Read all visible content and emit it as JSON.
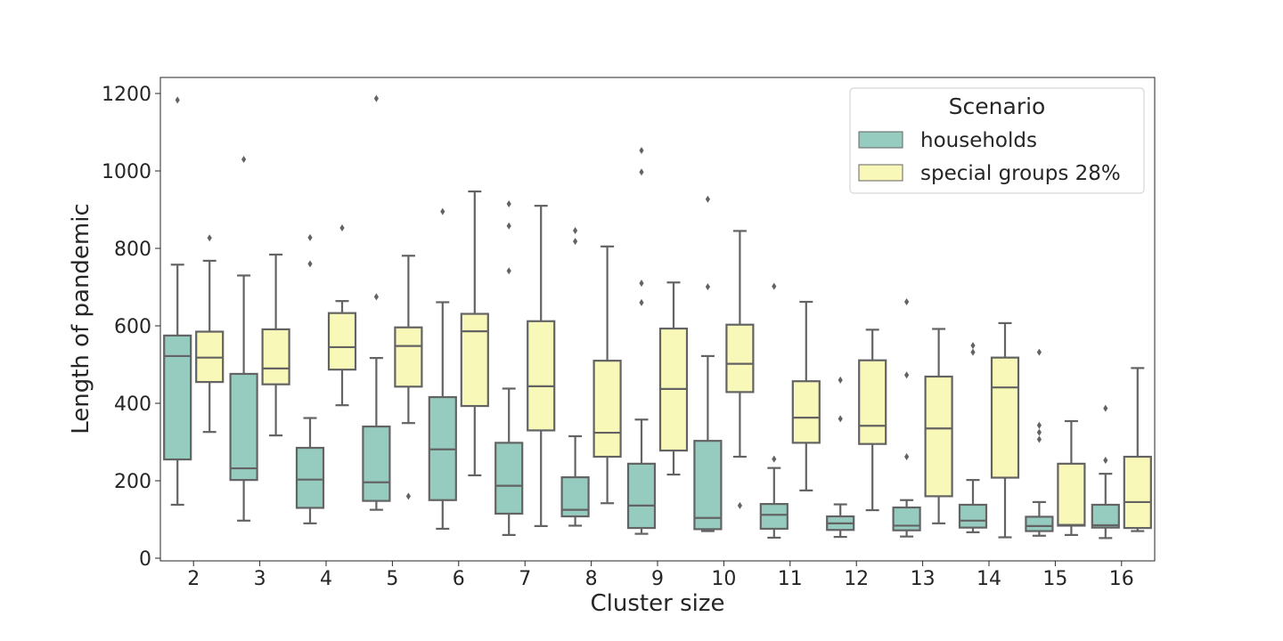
{
  "chart_data": {
    "type": "box",
    "xlabel": "Cluster size",
    "ylabel": "Length of pandemic",
    "ylim": [
      0,
      1250
    ],
    "yticks": [
      0,
      200,
      400,
      600,
      800,
      1000,
      1200
    ],
    "categories": [
      "2",
      "3",
      "4",
      "5",
      "6",
      "7",
      "8",
      "9",
      "10",
      "11",
      "12",
      "13",
      "14",
      "15",
      "16"
    ],
    "legend": {
      "title": "Scenario",
      "position": "upper right"
    },
    "series": [
      {
        "name": "households",
        "color": "#96cbc0",
        "boxes": [
          {
            "whislo": 138,
            "q1": 255,
            "med": 522,
            "q3": 575,
            "whishi": 758,
            "fliers": [
              1183
            ]
          },
          {
            "whislo": 97,
            "q1": 202,
            "med": 232,
            "q3": 476,
            "whishi": 730,
            "fliers": [
              1030
            ]
          },
          {
            "whislo": 90,
            "q1": 130,
            "med": 203,
            "q3": 285,
            "whishi": 362,
            "fliers": [
              760,
              828
            ]
          },
          {
            "whislo": 125,
            "q1": 148,
            "med": 196,
            "q3": 340,
            "whishi": 517,
            "fliers": [
              675,
              1187
            ]
          },
          {
            "whislo": 76,
            "q1": 150,
            "med": 281,
            "q3": 416,
            "whishi": 661,
            "fliers": [
              895
            ]
          },
          {
            "whislo": 60,
            "q1": 115,
            "med": 187,
            "q3": 298,
            "whishi": 438,
            "fliers": [
              742,
              858,
              915
            ]
          },
          {
            "whislo": 84,
            "q1": 108,
            "med": 125,
            "q3": 209,
            "whishi": 315,
            "fliers": [
              818,
              846
            ]
          },
          {
            "whislo": 63,
            "q1": 78,
            "med": 136,
            "q3": 244,
            "whishi": 358,
            "fliers": [
              660,
              710,
              997,
              1053
            ]
          },
          {
            "whislo": 70,
            "q1": 75,
            "med": 104,
            "q3": 303,
            "whishi": 522,
            "fliers": [
              701,
              927
            ]
          },
          {
            "whislo": 53,
            "q1": 76,
            "med": 112,
            "q3": 140,
            "whishi": 233,
            "fliers": [
              256,
              702
            ]
          },
          {
            "whislo": 55,
            "q1": 73,
            "med": 90,
            "q3": 108,
            "whishi": 139,
            "fliers": [
              360,
              460
            ]
          },
          {
            "whislo": 56,
            "q1": 72,
            "med": 84,
            "q3": 131,
            "whishi": 150,
            "fliers": [
              262,
              473,
              662
            ]
          },
          {
            "whislo": 67,
            "q1": 79,
            "med": 97,
            "q3": 138,
            "whishi": 202,
            "fliers": [
              532,
              549
            ]
          },
          {
            "whislo": 58,
            "q1": 70,
            "med": 83,
            "q3": 107,
            "whishi": 145,
            "fliers": [
              307,
              325,
              343,
              532
            ]
          },
          {
            "whislo": 52,
            "q1": 79,
            "med": 85,
            "q3": 138,
            "whishi": 218,
            "fliers": [
              253,
              387
            ]
          }
        ]
      },
      {
        "name": "special groups 28%",
        "color": "#f8f8b9",
        "boxes": [
          {
            "whislo": 326,
            "q1": 455,
            "med": 518,
            "q3": 585,
            "whishi": 768,
            "fliers": [
              827
            ]
          },
          {
            "whislo": 317,
            "q1": 449,
            "med": 490,
            "q3": 591,
            "whishi": 784,
            "fliers": []
          },
          {
            "whislo": 395,
            "q1": 487,
            "med": 545,
            "q3": 633,
            "whishi": 664,
            "fliers": [
              853
            ]
          },
          {
            "whislo": 349,
            "q1": 443,
            "med": 548,
            "q3": 596,
            "whishi": 781,
            "fliers": [
              160
            ]
          },
          {
            "whislo": 214,
            "q1": 393,
            "med": 586,
            "q3": 631,
            "whishi": 947,
            "fliers": []
          },
          {
            "whislo": 83,
            "q1": 330,
            "med": 444,
            "q3": 612,
            "whishi": 910,
            "fliers": []
          },
          {
            "whislo": 142,
            "q1": 262,
            "med": 324,
            "q3": 510,
            "whishi": 805,
            "fliers": []
          },
          {
            "whislo": 216,
            "q1": 278,
            "med": 437,
            "q3": 593,
            "whishi": 712,
            "fliers": []
          },
          {
            "whislo": 262,
            "q1": 429,
            "med": 502,
            "q3": 603,
            "whishi": 845,
            "fliers": [
              136
            ]
          },
          {
            "whislo": 175,
            "q1": 298,
            "med": 363,
            "q3": 457,
            "whishi": 662,
            "fliers": []
          },
          {
            "whislo": 124,
            "q1": 295,
            "med": 342,
            "q3": 511,
            "whishi": 590,
            "fliers": []
          },
          {
            "whislo": 90,
            "q1": 160,
            "med": 335,
            "q3": 469,
            "whishi": 592,
            "fliers": []
          },
          {
            "whislo": 54,
            "q1": 208,
            "med": 441,
            "q3": 518,
            "whishi": 607,
            "fliers": []
          },
          {
            "whislo": 60,
            "q1": 84,
            "med": 86,
            "q3": 244,
            "whishi": 354,
            "fliers": []
          },
          {
            "whislo": 70,
            "q1": 78,
            "med": 145,
            "q3": 262,
            "whishi": 491,
            "fliers": []
          }
        ]
      }
    ],
    "box_edge_color": "#636363"
  }
}
